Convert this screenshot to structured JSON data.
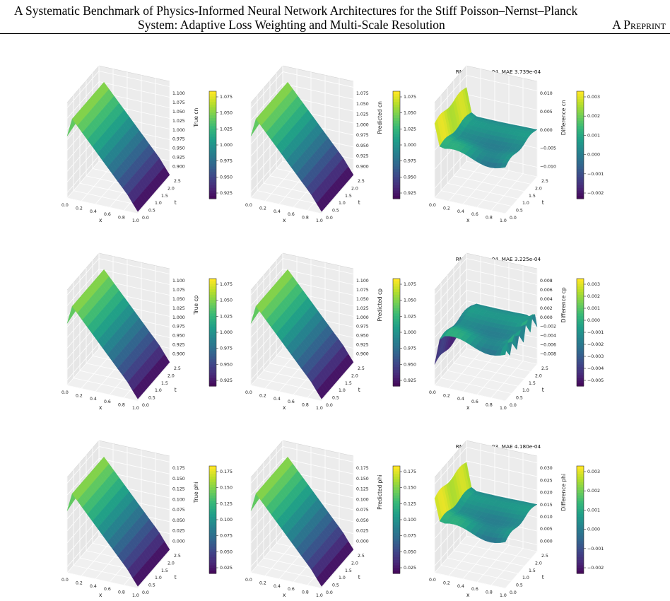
{
  "paper": {
    "title_line1": "A Systematic Benchmark of Physics-Informed Neural Network Architectures for the Stiff Poisson–Nernst–Planck",
    "title_line2": "System: Adaptive Loss Weighting and Multi-Scale Resolution",
    "running_label": "A Preprint"
  },
  "colors": {
    "viridis": [
      "#440154",
      "#482878",
      "#3e4989",
      "#31688e",
      "#26828e",
      "#1f9e89",
      "#35b779",
      "#6ece58",
      "#b5de2b",
      "#fde725"
    ]
  },
  "figure": {
    "rows": [
      {
        "variable": "cn",
        "metrics": "RMSE 6.613e-04, MAE 3.739e-04",
        "panels": [
          {
            "kind": "true",
            "title": "True cn",
            "zlabel": "True cn",
            "zticks": [
              "0.900",
              "0.925",
              "0.950",
              "0.975",
              "1.000",
              "1.025",
              "1.050",
              "1.075",
              "1.100"
            ],
            "cbticks": [
              "0.925",
              "0.950",
              "0.975",
              "1.000",
              "1.025",
              "1.050",
              "1.075"
            ]
          },
          {
            "kind": "pred",
            "title": "Predicted cn",
            "zlabel": "Predicted cn",
            "zticks": [
              "0.900",
              "0.925",
              "0.950",
              "0.975",
              "1.000",
              "1.025",
              "1.050",
              "1.075"
            ],
            "cbticks": [
              "0.925",
              "0.950",
              "0.975",
              "1.000",
              "1.025",
              "1.050",
              "1.075"
            ]
          },
          {
            "kind": "diff",
            "title": "Difference cn",
            "zlabel": "Difference cn",
            "zticks": [
              "−0.010",
              "−0.005",
              "0.000",
              "0.005",
              "0.010"
            ],
            "cbticks": [
              "−0.002",
              "−0.001",
              "0.000",
              "0.001",
              "0.002",
              "0.003"
            ]
          }
        ]
      },
      {
        "variable": "cp",
        "metrics": "RMSE 6.214e-04, MAE 3.225e-04",
        "panels": [
          {
            "kind": "true",
            "title": "True cp",
            "zlabel": "True cp",
            "zticks": [
              "0.900",
              "0.925",
              "0.950",
              "0.975",
              "1.000",
              "1.025",
              "1.050",
              "1.075",
              "1.100"
            ],
            "cbticks": [
              "0.925",
              "0.950",
              "0.975",
              "1.000",
              "1.025",
              "1.050",
              "1.075"
            ]
          },
          {
            "kind": "pred",
            "title": "Predicted cp",
            "zlabel": "Predicted cp",
            "zticks": [
              "0.900",
              "0.925",
              "0.950",
              "0.975",
              "1.000",
              "1.025",
              "1.050",
              "1.075",
              "1.100"
            ],
            "cbticks": [
              "0.925",
              "0.950",
              "0.975",
              "1.000",
              "1.025",
              "1.050",
              "1.075"
            ]
          },
          {
            "kind": "diff",
            "title": "Difference cp",
            "zlabel": "Difference cp",
            "zticks": [
              "−0.008",
              "−0.006",
              "−0.004",
              "−0.002",
              "0.000",
              "0.002",
              "0.004",
              "0.006",
              "0.008"
            ],
            "cbticks": [
              "−0.005",
              "−0.004",
              "−0.003",
              "−0.002",
              "−0.001",
              "0.000",
              "0.001",
              "0.002",
              "0.003"
            ]
          }
        ]
      },
      {
        "variable": "phi",
        "metrics": "RMSE 1.068e-03, MAE 4.180e-04",
        "panels": [
          {
            "kind": "true",
            "title": "True phi",
            "zlabel": "True phi",
            "zticks": [
              "0.000",
              "0.025",
              "0.050",
              "0.075",
              "0.100",
              "0.125",
              "0.150",
              "0.175"
            ],
            "cbticks": [
              "0.025",
              "0.050",
              "0.075",
              "0.100",
              "0.125",
              "0.150",
              "0.175"
            ]
          },
          {
            "kind": "pred",
            "title": "Predicted phi",
            "zlabel": "Predicted phi",
            "zticks": [
              "0.000",
              "0.025",
              "0.050",
              "0.075",
              "0.100",
              "0.125",
              "0.150",
              "0.175"
            ],
            "cbticks": [
              "0.025",
              "0.050",
              "0.075",
              "0.100",
              "0.125",
              "0.150",
              "0.175"
            ]
          },
          {
            "kind": "diff",
            "title": "Difference phi",
            "zlabel": "Difference phi",
            "zticks": [
              "0.000",
              "0.005",
              "0.010",
              "0.015",
              "0.020",
              "0.025",
              "0.030"
            ],
            "cbticks": [
              "−0.002",
              "−0.001",
              "0.000",
              "0.001",
              "0.002",
              "0.003"
            ]
          }
        ]
      }
    ],
    "x_ticks": [
      "0.0",
      "0.2",
      "0.4",
      "0.6",
      "0.8",
      "1.0"
    ],
    "t_ticks": [
      "0.0",
      "0.5",
      "1.0",
      "1.5",
      "2.0",
      "2.5"
    ],
    "x_label": "x",
    "t_label": "t"
  }
}
